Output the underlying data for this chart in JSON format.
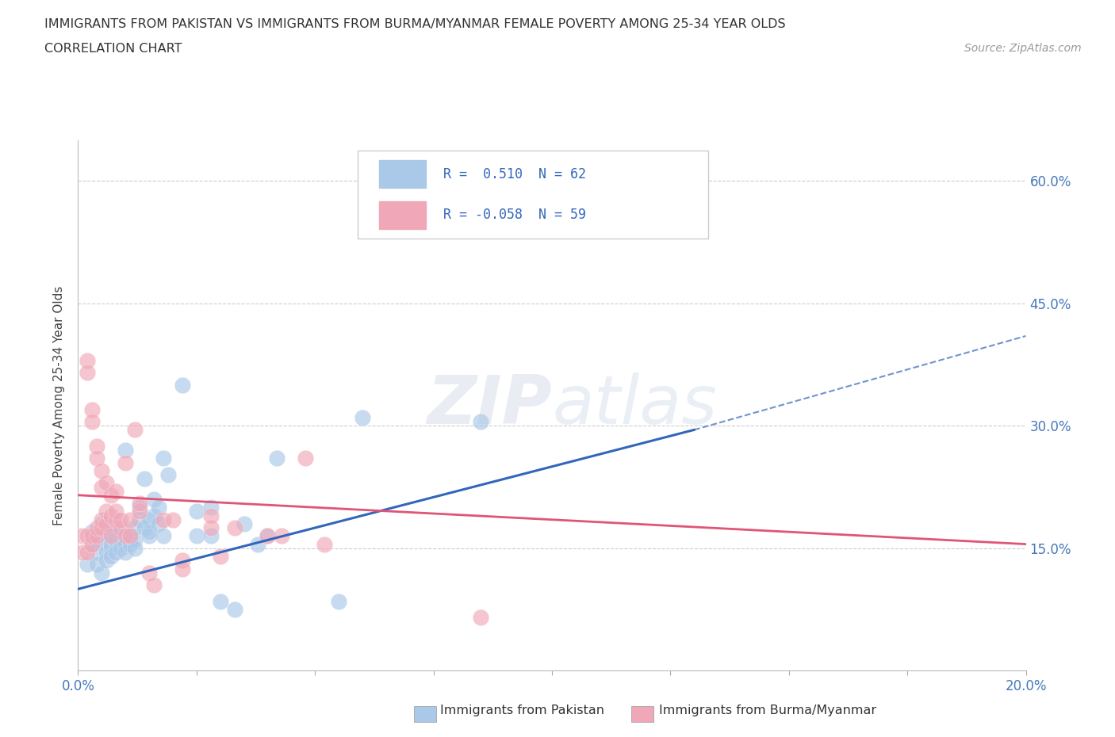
{
  "title_line1": "IMMIGRANTS FROM PAKISTAN VS IMMIGRANTS FROM BURMA/MYANMAR FEMALE POVERTY AMONG 25-34 YEAR OLDS",
  "title_line2": "CORRELATION CHART",
  "source": "Source: ZipAtlas.com",
  "ylabel": "Female Poverty Among 25-34 Year Olds",
  "xlim": [
    0.0,
    0.2
  ],
  "ylim": [
    0.0,
    0.65
  ],
  "yticks": [
    0.15,
    0.3,
    0.45,
    0.6
  ],
  "ytick_labels": [
    "15.0%",
    "30.0%",
    "45.0%",
    "60.0%"
  ],
  "xticks": [
    0.0,
    0.025,
    0.05,
    0.075,
    0.1,
    0.125,
    0.15,
    0.175,
    0.2
  ],
  "xtick_labels": [
    "0.0%",
    "",
    "",
    "",
    "",
    "",
    "",
    "",
    "20.0%"
  ],
  "watermark": "ZIPatlas",
  "pakistan_color": "#aac8e8",
  "burma_color": "#f0a8b8",
  "pakistan_line_color": "#3366bb",
  "burma_line_color": "#e05575",
  "pakistan_scatter": [
    [
      0.002,
      0.13
    ],
    [
      0.003,
      0.155
    ],
    [
      0.003,
      0.17
    ],
    [
      0.004,
      0.145
    ],
    [
      0.004,
      0.13
    ],
    [
      0.004,
      0.16
    ],
    [
      0.005,
      0.18
    ],
    [
      0.005,
      0.12
    ],
    [
      0.006,
      0.155
    ],
    [
      0.006,
      0.17
    ],
    [
      0.006,
      0.145
    ],
    [
      0.006,
      0.135
    ],
    [
      0.007,
      0.15
    ],
    [
      0.007,
      0.165
    ],
    [
      0.007,
      0.155
    ],
    [
      0.007,
      0.14
    ],
    [
      0.008,
      0.155
    ],
    [
      0.008,
      0.17
    ],
    [
      0.008,
      0.16
    ],
    [
      0.008,
      0.145
    ],
    [
      0.009,
      0.16
    ],
    [
      0.009,
      0.15
    ],
    [
      0.009,
      0.17
    ],
    [
      0.01,
      0.155
    ],
    [
      0.01,
      0.145
    ],
    [
      0.01,
      0.27
    ],
    [
      0.011,
      0.16
    ],
    [
      0.011,
      0.155
    ],
    [
      0.011,
      0.165
    ],
    [
      0.012,
      0.16
    ],
    [
      0.012,
      0.175
    ],
    [
      0.012,
      0.15
    ],
    [
      0.013,
      0.185
    ],
    [
      0.013,
      0.2
    ],
    [
      0.014,
      0.235
    ],
    [
      0.014,
      0.175
    ],
    [
      0.015,
      0.165
    ],
    [
      0.015,
      0.185
    ],
    [
      0.015,
      0.17
    ],
    [
      0.016,
      0.19
    ],
    [
      0.016,
      0.21
    ],
    [
      0.017,
      0.18
    ],
    [
      0.017,
      0.2
    ],
    [
      0.018,
      0.26
    ],
    [
      0.018,
      0.165
    ],
    [
      0.019,
      0.24
    ],
    [
      0.022,
      0.35
    ],
    [
      0.025,
      0.165
    ],
    [
      0.025,
      0.195
    ],
    [
      0.028,
      0.165
    ],
    [
      0.028,
      0.2
    ],
    [
      0.03,
      0.085
    ],
    [
      0.033,
      0.075
    ],
    [
      0.035,
      0.18
    ],
    [
      0.038,
      0.155
    ],
    [
      0.04,
      0.165
    ],
    [
      0.042,
      0.26
    ],
    [
      0.055,
      0.085
    ],
    [
      0.06,
      0.31
    ],
    [
      0.085,
      0.305
    ]
  ],
  "burma_scatter": [
    [
      0.001,
      0.145
    ],
    [
      0.001,
      0.165
    ],
    [
      0.002,
      0.38
    ],
    [
      0.002,
      0.365
    ],
    [
      0.002,
      0.165
    ],
    [
      0.002,
      0.145
    ],
    [
      0.003,
      0.32
    ],
    [
      0.003,
      0.305
    ],
    [
      0.003,
      0.155
    ],
    [
      0.003,
      0.165
    ],
    [
      0.004,
      0.275
    ],
    [
      0.004,
      0.26
    ],
    [
      0.004,
      0.165
    ],
    [
      0.004,
      0.175
    ],
    [
      0.005,
      0.245
    ],
    [
      0.005,
      0.225
    ],
    [
      0.005,
      0.175
    ],
    [
      0.005,
      0.185
    ],
    [
      0.006,
      0.23
    ],
    [
      0.006,
      0.18
    ],
    [
      0.006,
      0.195
    ],
    [
      0.007,
      0.215
    ],
    [
      0.007,
      0.19
    ],
    [
      0.007,
      0.165
    ],
    [
      0.008,
      0.22
    ],
    [
      0.008,
      0.185
    ],
    [
      0.008,
      0.195
    ],
    [
      0.009,
      0.175
    ],
    [
      0.009,
      0.185
    ],
    [
      0.01,
      0.165
    ],
    [
      0.01,
      0.255
    ],
    [
      0.011,
      0.185
    ],
    [
      0.011,
      0.165
    ],
    [
      0.012,
      0.295
    ],
    [
      0.013,
      0.195
    ],
    [
      0.013,
      0.205
    ],
    [
      0.015,
      0.12
    ],
    [
      0.016,
      0.105
    ],
    [
      0.018,
      0.185
    ],
    [
      0.02,
      0.185
    ],
    [
      0.022,
      0.135
    ],
    [
      0.022,
      0.125
    ],
    [
      0.028,
      0.175
    ],
    [
      0.028,
      0.19
    ],
    [
      0.03,
      0.14
    ],
    [
      0.033,
      0.175
    ],
    [
      0.04,
      0.165
    ],
    [
      0.043,
      0.165
    ],
    [
      0.048,
      0.26
    ],
    [
      0.052,
      0.155
    ],
    [
      0.085,
      0.065
    ]
  ],
  "pakistan_trendline_solid": [
    [
      0.0,
      0.1
    ],
    [
      0.13,
      0.295
    ]
  ],
  "pakistan_trendline_dashed": [
    [
      0.13,
      0.295
    ],
    [
      0.2,
      0.41
    ]
  ],
  "burma_trendline": [
    [
      0.0,
      0.215
    ],
    [
      0.2,
      0.155
    ]
  ]
}
